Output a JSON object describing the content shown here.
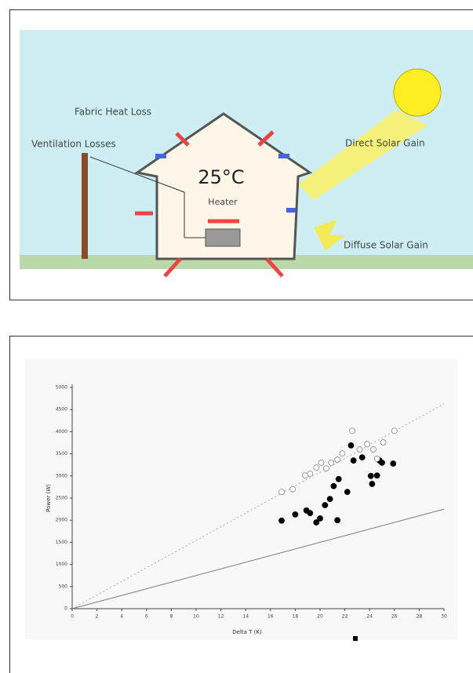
{
  "diagram": {
    "labels": {
      "fabric": "Fabric Heat Loss",
      "ventilation": "Ventilation Losses",
      "temperature": "25°C",
      "heater": "Heater",
      "direct": "Direct Solar Gain",
      "diffuse": "Diffuse Solar Gain"
    }
  },
  "chart_data": {
    "type": "scatter",
    "x_label": "Delta T (K)",
    "y_label": "Power (W)",
    "xlim": [
      0,
      30
    ],
    "ylim": [
      0,
      5000
    ],
    "xticks": [
      0,
      2,
      4,
      6,
      8,
      10,
      12,
      14,
      16,
      18,
      20,
      22,
      24,
      26,
      28,
      30
    ],
    "yticks": [
      0,
      500,
      1000,
      1500,
      2000,
      2500,
      3000,
      3500,
      4000,
      4500,
      5000
    ],
    "series": [
      {
        "color": "#000000",
        "marker": "filled",
        "x": [
          16.9,
          18.0,
          18.9,
          19.2,
          19.7,
          20.0,
          20.4,
          20.8,
          21.1,
          21.5,
          21.4,
          22.2,
          22.5,
          22.7,
          23.4,
          24.1,
          24.2,
          24.6,
          24.8,
          25.0,
          25.9
        ],
        "values": [
          1990,
          2130,
          2220,
          2160,
          1950,
          2040,
          2340,
          2480,
          2770,
          2930,
          2000,
          2640,
          3690,
          3350,
          3420,
          3000,
          2820,
          3010,
          3350,
          3300,
          3280
        ]
      },
      {
        "color": "#888888",
        "marker": "open",
        "x": [
          16.9,
          17.8,
          18.8,
          19.2,
          19.7,
          20.1,
          20.5,
          20.9,
          21.4,
          21.8,
          22.6,
          23.2,
          23.8,
          24.3,
          24.6,
          26.0,
          25.1
        ],
        "values": [
          2640,
          2700,
          3010,
          3050,
          3190,
          3300,
          3170,
          3300,
          3370,
          3510,
          4020,
          3600,
          3720,
          3600,
          3390,
          4020,
          3760
        ]
      }
    ],
    "lines": [
      {
        "color": "#aaaaaa",
        "style": "dotted",
        "x": [
          0,
          30
        ],
        "values": [
          0,
          4630
        ]
      },
      {
        "color": "#777777",
        "style": "solid",
        "x": [
          0,
          30
        ],
        "values": [
          0,
          2250
        ]
      }
    ]
  }
}
